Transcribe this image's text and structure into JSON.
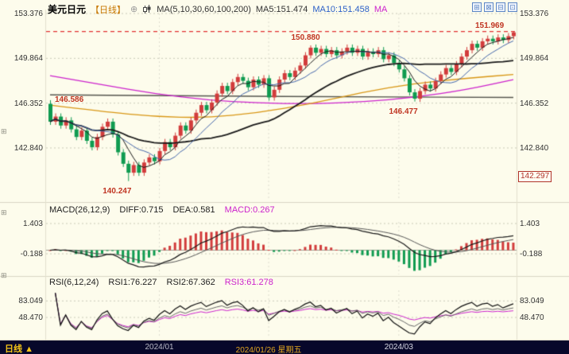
{
  "header": {
    "symbol": "美元日元",
    "period": "【日线】",
    "add_icon": "⊕",
    "ma_label": "MA(5,10,30,60,100,200)",
    "ma5": "MA5:151.474",
    "ma10": "MA10:151.458",
    "ma_more": "MA",
    "toolbar_icons": [
      "⊞",
      "⊠",
      "⊟",
      "⊡"
    ]
  },
  "icons": {
    "panel_toggle": "⊞"
  },
  "colors": {
    "background": "#fdfcec",
    "up": "#d23c3c",
    "down": "#0f9b50",
    "ma5": "#1a1a1a",
    "ma10": "#4466aa",
    "ma30": "#1a1a1a",
    "ma60": "#d89614",
    "ma100": "#cc22cc",
    "ma200": "#55554e",
    "annotation": "#c03522",
    "hline": "#e03030",
    "grid": "#c9c9b8",
    "axis_text": "#333333",
    "magenta": "#cc22cc",
    "diff_line": "#1a1a1a",
    "dea_line": "#555555",
    "rsi1": "#111111",
    "rsi2": "#666666"
  },
  "main_axis": {
    "labels": [
      "153.376",
      "149.864",
      "146.352",
      "142.840"
    ],
    "boxed_value": "142.297"
  },
  "macd": {
    "title": "MACD(26,12,9)",
    "diff": "DIFF:0.715",
    "dea": "DEA:0.581",
    "value": "MACD:0.267",
    "axis": [
      "1.403",
      "-0.188"
    ]
  },
  "rsi": {
    "title": "RSI(6,12,24)",
    "rsi1": "RSI1:76.227",
    "rsi2": "RSI2:67.362",
    "rsi3": "RSI3:61.278",
    "axis": [
      "83.049",
      "48.470"
    ]
  },
  "footer": {
    "period": "日线",
    "arrow": "▲",
    "dates": [
      {
        "label": "2024/01",
        "i": 21,
        "color": "#b9b9c6"
      },
      {
        "label": "2024/01/26 星期五",
        "i": 42,
        "color": "#e0a520"
      },
      {
        "label": "2024/03",
        "i": 67,
        "color": "#d8d8e4"
      }
    ]
  },
  "chart_data": {
    "type": "candlestick",
    "symbol": "USD/JPY (美元日元)",
    "timeframe": "daily",
    "price_axis_ticks": [
      153.376,
      149.864,
      146.352,
      142.84
    ],
    "price_range": [
      138.8,
      153.376
    ],
    "high_line": {
      "price": 151.969,
      "label": "151.969"
    },
    "annotations": [
      {
        "text": "146.586",
        "i": 0,
        "price": 146.586,
        "pos": "right"
      },
      {
        "text": "140.247",
        "i": 15,
        "price": 140.247,
        "pos": "below"
      },
      {
        "text": "150.880",
        "i": 50,
        "price": 150.88,
        "pos": "above"
      },
      {
        "text": "146.477",
        "i": 70,
        "price": 146.477,
        "pos": "below"
      }
    ],
    "candles": [
      [
        146.3,
        146.586,
        144.65,
        144.9
      ],
      [
        144.9,
        145.55,
        144.65,
        145.3
      ],
      [
        145.3,
        145.55,
        144.35,
        144.6
      ],
      [
        144.6,
        145.25,
        144.35,
        145.0
      ],
      [
        145.0,
        145.25,
        144.05,
        144.3
      ],
      [
        144.3,
        144.55,
        143.45,
        143.7
      ],
      [
        143.7,
        144.45,
        143.45,
        144.2
      ],
      [
        144.2,
        144.45,
        143.15,
        143.4
      ],
      [
        143.4,
        143.65,
        142.65,
        142.9
      ],
      [
        142.9,
        143.95,
        142.65,
        143.7
      ],
      [
        143.7,
        144.75,
        143.45,
        144.5
      ],
      [
        144.5,
        145.15,
        144.25,
        144.9
      ],
      [
        144.9,
        145.15,
        143.65,
        143.9
      ],
      [
        143.9,
        144.15,
        142.25,
        142.5
      ],
      [
        142.5,
        142.75,
        141.35,
        141.6
      ],
      [
        141.6,
        141.85,
        140.247,
        140.9
      ],
      [
        140.9,
        141.75,
        140.65,
        141.5
      ],
      [
        141.5,
        141.75,
        140.65,
        140.9
      ],
      [
        140.9,
        141.95,
        140.65,
        141.7
      ],
      [
        141.7,
        142.35,
        141.45,
        142.1
      ],
      [
        142.1,
        142.35,
        141.55,
        141.8
      ],
      [
        141.8,
        142.85,
        141.55,
        142.6
      ],
      [
        142.6,
        143.55,
        142.35,
        143.3
      ],
      [
        143.3,
        143.55,
        142.65,
        142.9
      ],
      [
        142.9,
        144.05,
        142.65,
        143.8
      ],
      [
        143.8,
        144.85,
        143.55,
        144.6
      ],
      [
        144.6,
        144.85,
        143.95,
        144.2
      ],
      [
        144.2,
        145.25,
        143.95,
        145.0
      ],
      [
        145.0,
        145.85,
        144.75,
        145.6
      ],
      [
        145.6,
        146.45,
        145.35,
        146.2
      ],
      [
        146.2,
        146.45,
        145.55,
        145.8
      ],
      [
        145.8,
        146.65,
        145.55,
        146.4
      ],
      [
        146.4,
        147.35,
        146.15,
        147.1
      ],
      [
        147.1,
        147.95,
        146.85,
        147.7
      ],
      [
        147.7,
        147.95,
        147.05,
        147.3
      ],
      [
        147.3,
        148.25,
        147.05,
        148.0
      ],
      [
        148.0,
        148.65,
        147.75,
        148.4
      ],
      [
        148.4,
        148.65,
        147.85,
        148.1
      ],
      [
        148.1,
        148.35,
        147.35,
        147.6
      ],
      [
        147.6,
        148.45,
        147.35,
        148.2
      ],
      [
        148.2,
        148.45,
        147.55,
        147.8
      ],
      [
        147.8,
        148.55,
        147.55,
        148.3
      ],
      [
        148.3,
        148.55,
        146.55,
        146.8
      ],
      [
        146.8,
        147.65,
        146.55,
        147.4
      ],
      [
        147.4,
        148.45,
        147.15,
        148.2
      ],
      [
        148.2,
        148.95,
        147.95,
        148.7
      ],
      [
        148.7,
        148.95,
        148.15,
        148.4
      ],
      [
        148.4,
        149.15,
        148.15,
        148.9
      ],
      [
        148.9,
        149.55,
        148.65,
        149.3
      ],
      [
        149.3,
        150.35,
        149.05,
        150.1
      ],
      [
        150.1,
        150.88,
        149.85,
        150.7
      ],
      [
        150.7,
        150.95,
        150.05,
        150.3
      ],
      [
        150.3,
        150.85,
        150.05,
        150.6
      ],
      [
        150.6,
        150.85,
        149.95,
        150.2
      ],
      [
        150.2,
        150.75,
        149.95,
        150.5
      ],
      [
        150.5,
        150.75,
        149.85,
        150.1
      ],
      [
        150.1,
        150.65,
        149.85,
        150.4
      ],
      [
        150.4,
        150.95,
        150.15,
        150.7
      ],
      [
        150.7,
        150.95,
        150.05,
        150.3
      ],
      [
        150.3,
        150.85,
        150.05,
        150.6
      ],
      [
        150.6,
        150.85,
        149.75,
        150.0
      ],
      [
        150.0,
        150.65,
        149.75,
        150.4
      ],
      [
        150.4,
        150.65,
        149.95,
        150.2
      ],
      [
        150.2,
        150.75,
        149.95,
        150.5
      ],
      [
        150.5,
        150.75,
        149.55,
        149.8
      ],
      [
        149.8,
        150.35,
        149.55,
        150.1
      ],
      [
        150.1,
        150.35,
        149.25,
        149.5
      ],
      [
        149.5,
        149.75,
        148.75,
        149.0
      ],
      [
        149.0,
        149.25,
        148.05,
        148.3
      ],
      [
        148.3,
        148.55,
        146.95,
        147.2
      ],
      [
        147.2,
        147.45,
        146.477,
        146.7
      ],
      [
        146.7,
        147.55,
        146.45,
        147.3
      ],
      [
        147.3,
        148.05,
        147.05,
        147.8
      ],
      [
        147.8,
        148.05,
        147.25,
        147.5
      ],
      [
        147.5,
        148.35,
        147.25,
        148.1
      ],
      [
        148.1,
        148.85,
        147.85,
        148.6
      ],
      [
        148.6,
        149.35,
        148.35,
        149.1
      ],
      [
        149.1,
        149.35,
        148.55,
        148.8
      ],
      [
        148.8,
        149.65,
        148.55,
        149.4
      ],
      [
        149.4,
        150.25,
        149.15,
        150.0
      ],
      [
        150.0,
        150.75,
        149.75,
        150.5
      ],
      [
        150.5,
        151.25,
        150.25,
        151.0
      ],
      [
        151.0,
        151.25,
        150.45,
        150.7
      ],
      [
        150.7,
        151.45,
        150.45,
        151.2
      ],
      [
        151.2,
        151.65,
        150.95,
        151.4
      ],
      [
        151.4,
        151.65,
        150.95,
        151.2
      ],
      [
        151.2,
        151.75,
        150.95,
        151.5
      ],
      [
        151.5,
        151.75,
        151.05,
        151.3
      ],
      [
        151.3,
        151.85,
        151.05,
        151.6
      ],
      [
        151.6,
        151.969,
        151.35,
        151.9
      ]
    ],
    "overlays": {
      "ma60": [
        [
          0,
          146.2
        ],
        [
          10,
          145.7
        ],
        [
          20,
          145.3
        ],
        [
          30,
          145.2
        ],
        [
          40,
          145.6
        ],
        [
          50,
          146.3
        ],
        [
          60,
          147.2
        ],
        [
          70,
          147.9
        ],
        [
          80,
          148.3
        ],
        [
          89,
          148.6
        ]
      ],
      "ma100": [
        [
          0,
          148.5
        ],
        [
          10,
          147.8
        ],
        [
          20,
          147.1
        ],
        [
          30,
          146.6
        ],
        [
          40,
          146.35
        ],
        [
          50,
          146.3
        ],
        [
          60,
          146.45
        ],
        [
          70,
          146.8
        ],
        [
          80,
          147.4
        ],
        [
          89,
          148.2
        ]
      ],
      "ma200": [
        [
          0,
          147.0
        ],
        [
          30,
          146.9
        ],
        [
          60,
          146.85
        ],
        [
          89,
          146.8
        ]
      ]
    },
    "macd_panel": {
      "params": [
        26,
        12,
        9
      ],
      "diff_last": 0.715,
      "dea_last": 0.581,
      "macd_last": 0.267,
      "axis_ticks": [
        1.403,
        -0.188
      ]
    },
    "rsi_panel": {
      "params": [
        6,
        12,
        24
      ],
      "rsi1_last": 76.227,
      "rsi2_last": 67.362,
      "rsi3_last": 61.278,
      "axis_ticks": [
        83.049,
        48.47
      ]
    }
  }
}
